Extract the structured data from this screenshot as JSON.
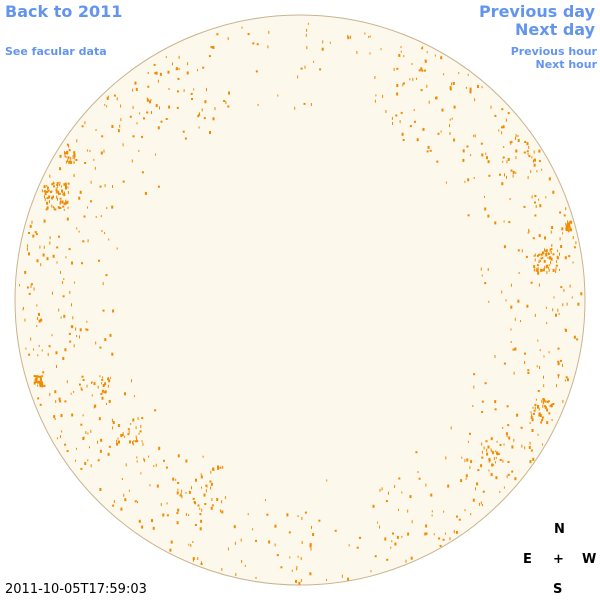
{
  "links": {
    "back": "Back to 2011",
    "previous_day": "Previous day",
    "next_day": "Next day",
    "see_facular_data": "See facular data",
    "previous_hour": "Previous hour",
    "next_hour": "Next hour"
  },
  "timestamp": "2011-10-05T17:59:03",
  "compass": {
    "north": "N",
    "east": "E",
    "center": "+",
    "west": "W",
    "south": "S"
  }
}
